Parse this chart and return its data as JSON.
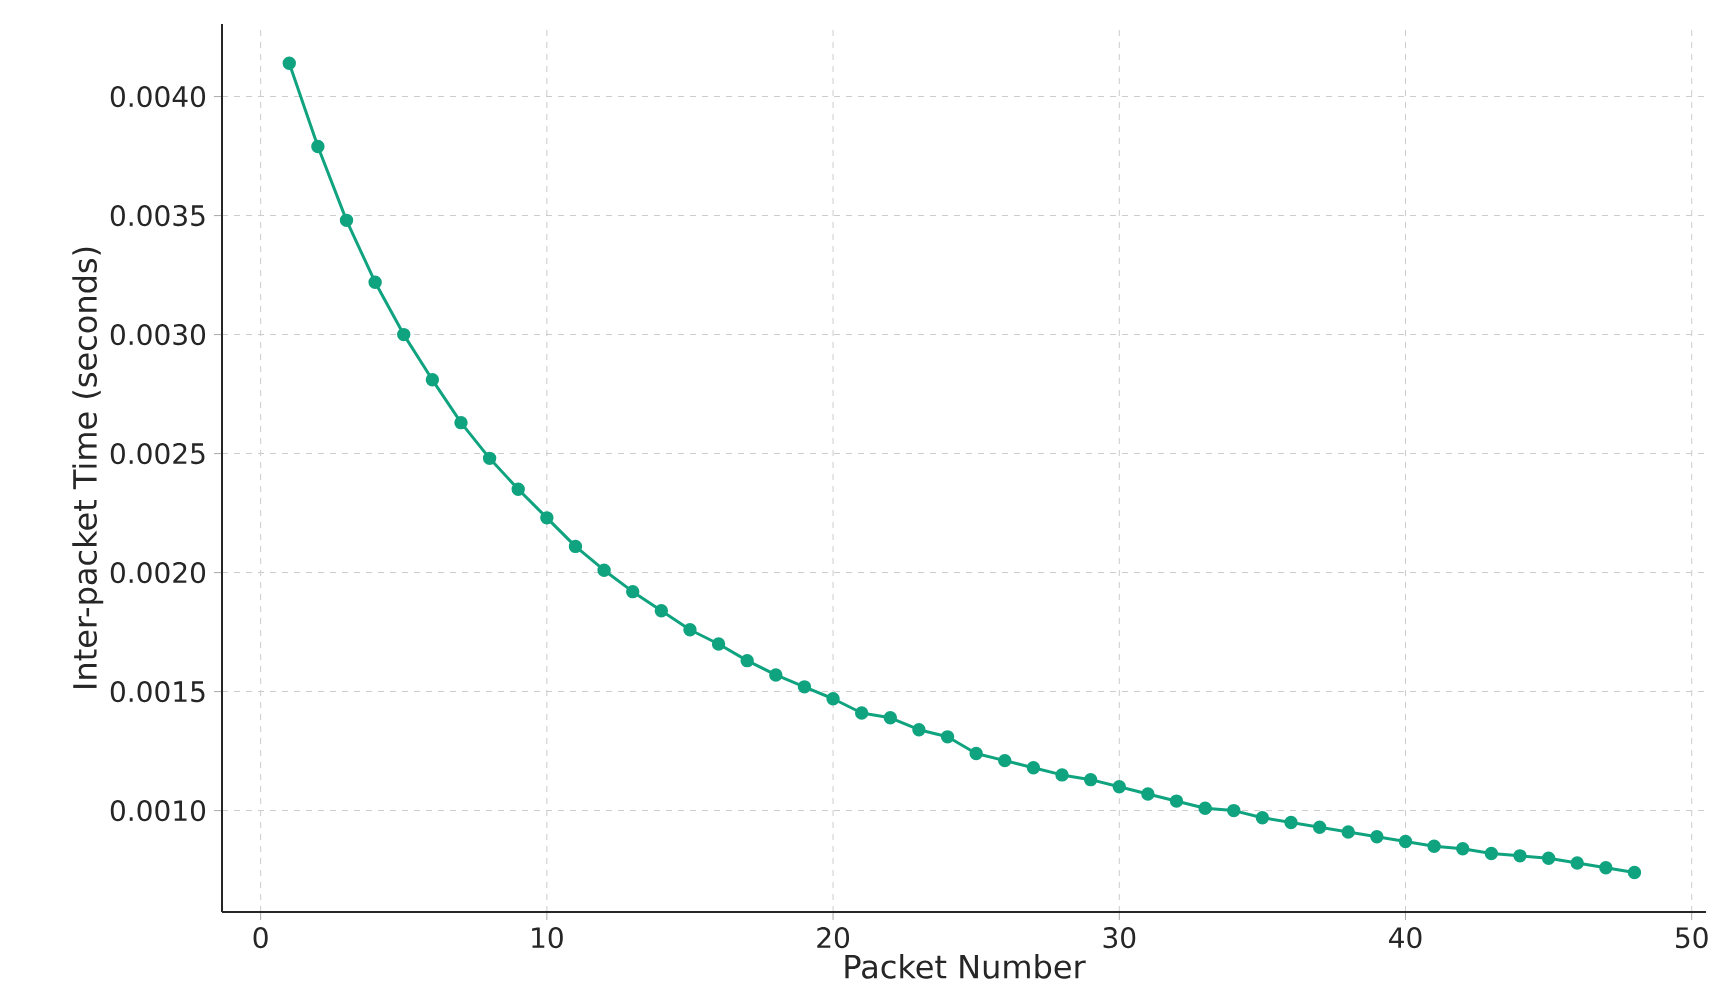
{
  "chart_data": {
    "type": "line",
    "xlabel": "Packet Number",
    "ylabel": "Inter-packet Time (seconds)",
    "x": [
      1,
      2,
      3,
      4,
      5,
      6,
      7,
      8,
      9,
      10,
      11,
      12,
      13,
      14,
      15,
      16,
      17,
      18,
      19,
      20,
      21,
      22,
      23,
      24,
      25,
      26,
      27,
      28,
      29,
      30,
      31,
      32,
      33,
      34,
      35,
      36,
      37,
      38,
      39,
      40,
      41,
      42,
      43,
      44,
      45,
      46,
      47,
      48
    ],
    "series": [
      {
        "color": "#10a37f",
        "values": [
          0.00414,
          0.00379,
          0.00348,
          0.00322,
          0.003,
          0.00281,
          0.00263,
          0.00248,
          0.00235,
          0.00223,
          0.00211,
          0.00201,
          0.00192,
          0.00184,
          0.00176,
          0.0017,
          0.00163,
          0.00157,
          0.00152,
          0.00147,
          0.00141,
          0.00139,
          0.00134,
          0.00131,
          0.00124,
          0.00121,
          0.00118,
          0.00115,
          0.00113,
          0.0011,
          0.00107,
          0.00104,
          0.00101,
          0.001,
          0.00097,
          0.00095,
          0.00093,
          0.00091,
          0.00089,
          0.00087,
          0.00085,
          0.00084,
          0.00082,
          0.00081,
          0.0008,
          0.00078,
          0.00076,
          0.00074
        ]
      }
    ],
    "xlim": [
      -1.35,
      50.5
    ],
    "ylim": [
      0.000574,
      0.004305
    ],
    "xticks": [
      0,
      10,
      20,
      30,
      40,
      50
    ],
    "yticks": [
      {
        "value": 0.001,
        "label": "0.0010"
      },
      {
        "value": 0.0015,
        "label": "0.0015"
      },
      {
        "value": 0.002,
        "label": "0.0020"
      },
      {
        "value": 0.0025,
        "label": "0.0025"
      },
      {
        "value": 0.003,
        "label": "0.0030"
      },
      {
        "value": 0.0035,
        "label": "0.0035"
      },
      {
        "value": 0.004,
        "label": "0.0040"
      }
    ],
    "grid": true,
    "marker": "circle",
    "line_style": "solid"
  }
}
